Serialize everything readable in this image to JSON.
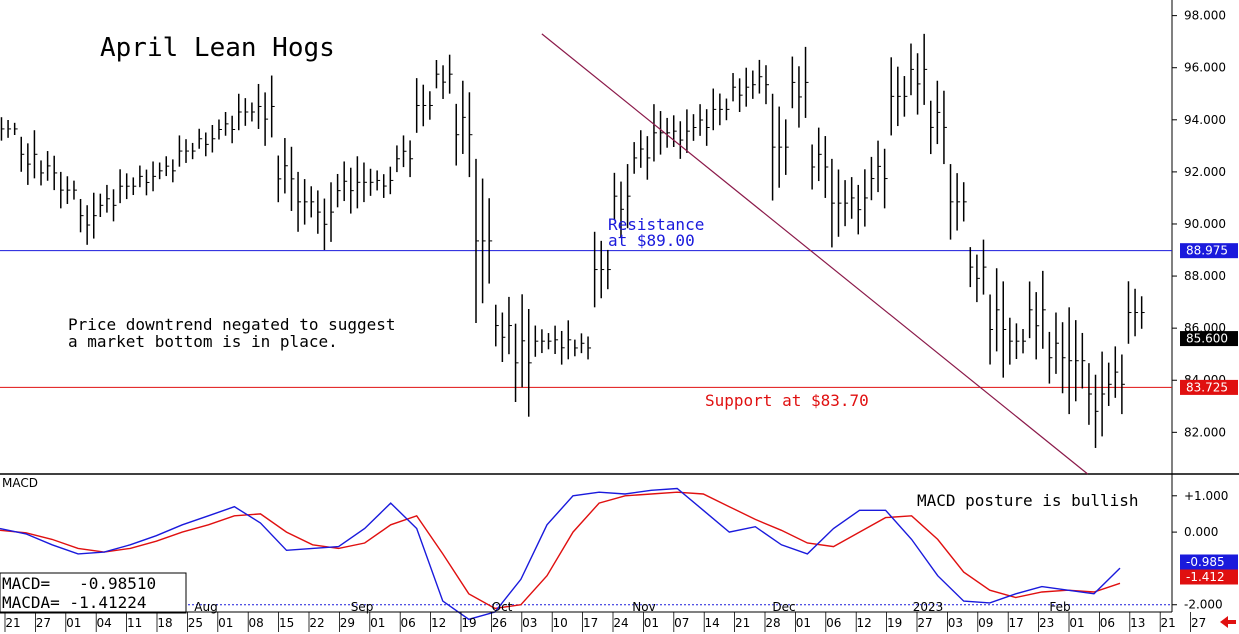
{
  "title": "April Lean Hogs",
  "annotations": {
    "downtrend_line1": "Price downtrend negated to suggest",
    "downtrend_line2": "a market bottom is in place.",
    "resistance_line1": "Resistance",
    "resistance_line2": "at $89.00",
    "support": "Support at $83.70",
    "macd_note": "MACD posture is bullish"
  },
  "macd_panel": {
    "label": "MACD",
    "macd_readout": "MACD=   -0.98510",
    "macda_readout": "MACDA= -1.41224",
    "macd_tag": "-0.985",
    "macda_tag": "-1.412"
  },
  "price_tags": {
    "resistance": "88.975",
    "last": "85.600",
    "support": "83.725"
  },
  "colors": {
    "resistance": "#1a1adc",
    "support": "#e01010",
    "trendline": "#8b1a4a",
    "macd_line": "#1a1adc",
    "signal_line": "#e01010",
    "bars": "#000000",
    "last_tag": "#000000",
    "arrow": "#e01010"
  },
  "chart_data": [
    {
      "type": "bar",
      "title": "April Lean Hogs",
      "y_ticks": [
        "98.000",
        "96.000",
        "94.000",
        "92.000",
        "90.000",
        "88.000",
        "86.000",
        "84.000",
        "82.000"
      ],
      "y_tick_values": [
        98,
        96,
        94,
        92,
        90,
        88,
        86,
        84,
        82
      ],
      "ylim": [
        80.4,
        98.6
      ],
      "resistance_level": 88.975,
      "support_level": 83.725,
      "last_price": 85.6,
      "trendline": [
        [
          27,
          97.3
        ],
        [
          54,
          80.4
        ]
      ],
      "session_count": 58,
      "ohlc_sessions": [
        [
          0,
          94.1,
          93.2
        ],
        [
          1,
          93.6,
          91.5
        ],
        [
          2,
          92.8,
          91.3
        ],
        [
          3,
          92.0,
          90.6
        ],
        [
          4,
          91.2,
          89.2
        ],
        [
          5,
          91.5,
          90.1
        ],
        [
          6,
          92.1,
          90.8
        ],
        [
          7,
          92.4,
          91.1
        ],
        [
          8,
          92.6,
          91.6
        ],
        [
          9,
          93.4,
          92.2
        ],
        [
          10,
          93.8,
          92.6
        ],
        [
          11,
          94.3,
          93.1
        ],
        [
          12,
          95.0,
          93.6
        ],
        [
          13,
          95.7,
          93.0
        ],
        [
          14,
          93.3,
          90.5
        ],
        [
          15,
          92.0,
          89.7
        ],
        [
          16,
          91.6,
          89.0
        ],
        [
          17,
          92.4,
          90.4
        ],
        [
          18,
          92.6,
          90.6
        ],
        [
          19,
          92.2,
          91.0
        ],
        [
          20,
          93.4,
          91.8
        ],
        [
          21,
          95.6,
          93.5
        ],
        [
          22,
          96.5,
          94.8
        ],
        [
          23,
          95.5,
          91.8
        ],
        [
          24,
          92.5,
          86.2
        ],
        [
          25,
          87.2,
          84.7
        ],
        [
          26,
          87.3,
          82.6
        ],
        [
          27,
          86.1,
          84.9
        ],
        [
          28,
          86.3,
          84.6
        ],
        [
          29,
          85.8,
          84.8
        ],
        [
          30,
          89.7,
          86.8
        ],
        [
          31,
          92.3,
          89.5
        ],
        [
          32,
          93.6,
          91.7
        ],
        [
          33,
          94.6,
          92.4
        ],
        [
          34,
          94.4,
          92.5
        ],
        [
          35,
          94.6,
          93.0
        ],
        [
          36,
          95.2,
          93.6
        ],
        [
          37,
          96.0,
          94.3
        ],
        [
          38,
          96.3,
          94.6
        ],
        [
          39,
          95.0,
          90.9
        ],
        [
          40,
          96.8,
          93.7
        ],
        [
          41,
          93.7,
          91.0
        ],
        [
          42,
          92.5,
          89.1
        ],
        [
          43,
          92.1,
          89.6
        ],
        [
          44,
          93.2,
          90.6
        ],
        [
          45,
          96.4,
          93.4
        ],
        [
          46,
          97.3,
          94.2
        ],
        [
          47,
          95.5,
          92.3
        ],
        [
          48,
          92.3,
          89.4
        ],
        [
          49,
          89.4,
          87.0
        ],
        [
          50,
          88.3,
          84.1
        ],
        [
          51,
          86.4,
          84.6
        ],
        [
          52,
          88.2,
          84.8
        ],
        [
          53,
          86.6,
          83.5
        ],
        [
          54,
          86.8,
          82.7
        ],
        [
          55,
          85.1,
          81.4
        ],
        [
          56,
          85.3,
          82.7
        ],
        [
          57,
          87.8,
          85.4
        ]
      ]
    },
    {
      "type": "line",
      "title": "MACD",
      "y_ticks": [
        "+1.000",
        "0.000",
        "-1.000",
        "-2.000"
      ],
      "y_tick_values": [
        1,
        0,
        -1,
        -2
      ],
      "ylim": [
        -2.2,
        1.6
      ],
      "series": [
        {
          "name": "MACD",
          "values": [
            0.1,
            -0.05,
            -0.35,
            -0.6,
            -0.55,
            -0.35,
            -0.1,
            0.2,
            0.45,
            0.7,
            0.25,
            -0.5,
            -0.45,
            -0.4,
            0.1,
            0.8,
            0.1,
            -1.9,
            -2.4,
            -2.2,
            -1.3,
            0.2,
            1.0,
            1.1,
            1.05,
            1.15,
            1.2,
            0.6,
            0.0,
            0.15,
            -0.35,
            -0.6,
            0.1,
            0.6,
            0.6,
            -0.2,
            -1.2,
            -1.9,
            -1.95,
            -1.7,
            -1.5,
            -1.6,
            -1.7,
            -0.99
          ]
        },
        {
          "name": "MACDA",
          "values": [
            0.05,
            -0.02,
            -0.2,
            -0.45,
            -0.55,
            -0.45,
            -0.25,
            0.0,
            0.2,
            0.45,
            0.5,
            0.0,
            -0.35,
            -0.45,
            -0.3,
            0.2,
            0.45,
            -0.6,
            -1.7,
            -2.1,
            -2.0,
            -1.2,
            0.0,
            0.8,
            1.0,
            1.05,
            1.1,
            1.05,
            0.7,
            0.35,
            0.05,
            -0.3,
            -0.4,
            0.0,
            0.4,
            0.45,
            -0.2,
            -1.1,
            -1.6,
            -1.8,
            -1.65,
            -1.6,
            -1.65,
            -1.41
          ]
        }
      ]
    }
  ],
  "x_axis": {
    "day_ticks": [
      "21",
      "27",
      "01",
      "04",
      "11",
      "18",
      "25",
      "01",
      "08",
      "15",
      "22",
      "29",
      "01",
      "06",
      "12",
      "19",
      "26",
      "03",
      "10",
      "17",
      "24",
      "01",
      "07",
      "14",
      "21",
      "28",
      "01",
      "06",
      "12",
      "19",
      "27",
      "03",
      "09",
      "17",
      "23",
      "01",
      "06",
      "13",
      "21",
      "27"
    ],
    "month_labels": [
      "Aug",
      "Sep",
      "Oct",
      "Nov",
      "Dec",
      "2023",
      "Feb"
    ]
  }
}
